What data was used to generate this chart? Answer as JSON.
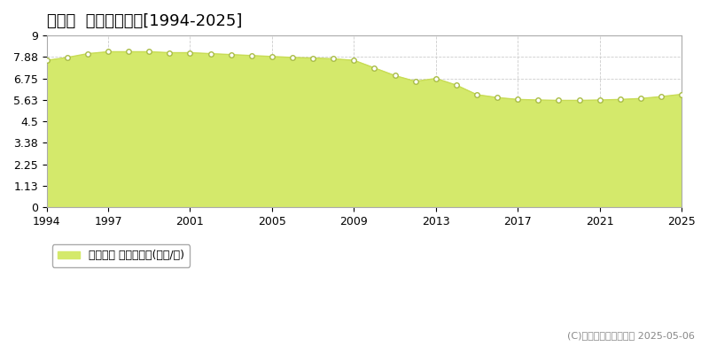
{
  "title": "上峰町  公示地価推移[1994-2025]",
  "legend_label": "公示地価 平均坪単価(万円/坪)",
  "copyright": "(C)土地価格ドットコム 2025-05-06",
  "years": [
    1994,
    1995,
    1996,
    1997,
    1998,
    1999,
    2000,
    2001,
    2002,
    2003,
    2004,
    2005,
    2006,
    2007,
    2008,
    2009,
    2010,
    2011,
    2012,
    2013,
    2014,
    2015,
    2016,
    2017,
    2018,
    2019,
    2020,
    2021,
    2022,
    2023,
    2024,
    2025
  ],
  "values": [
    7.7,
    7.85,
    8.05,
    8.15,
    8.15,
    8.15,
    8.1,
    8.1,
    8.05,
    8.0,
    7.95,
    7.9,
    7.85,
    7.82,
    7.78,
    7.7,
    7.3,
    6.9,
    6.6,
    6.75,
    6.4,
    5.9,
    5.75,
    5.65,
    5.62,
    5.6,
    5.6,
    5.62,
    5.65,
    5.7,
    5.8,
    5.92
  ],
  "fill_color": "#d4e96b",
  "line_color": "#c8dc55",
  "marker_color": "#ffffff",
  "marker_edge_color": "#a8bc45",
  "background_color": "#ffffff",
  "plot_bg_color": "#ffffff",
  "grid_color": "#cccccc",
  "ylim": [
    0,
    9
  ],
  "yticks": [
    0,
    1.13,
    2.25,
    3.38,
    4.5,
    5.63,
    6.75,
    7.88,
    9
  ],
  "ytick_labels": [
    "0",
    "1.13",
    "2.25",
    "3.38",
    "4.5",
    "5.63",
    "6.75",
    "7.88",
    "9"
  ],
  "xticks": [
    1994,
    1997,
    2001,
    2005,
    2009,
    2013,
    2017,
    2021,
    2025
  ],
  "title_fontsize": 13,
  "axis_fontsize": 9,
  "legend_fontsize": 9,
  "copyright_fontsize": 8
}
